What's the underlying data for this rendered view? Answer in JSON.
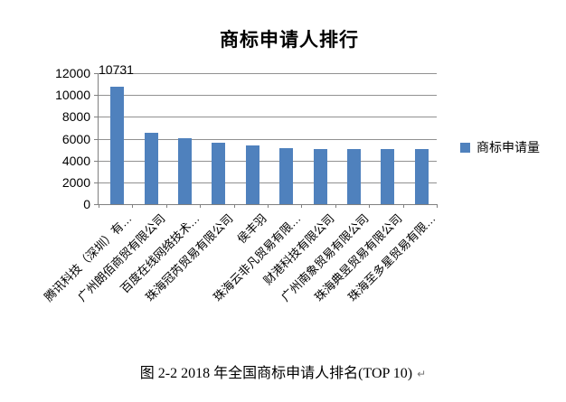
{
  "chart": {
    "title": "商标申请人排行",
    "data_label": "10731",
    "legend": {
      "label": "商标申请量",
      "swatch_color": "#4f81bd"
    },
    "colors": {
      "bar": "#4f81bd",
      "gridline": "#919191",
      "axis": "#808080"
    }
  },
  "caption": {
    "text": "图 2-2 2018 年全国商标申请人排名(TOP 10)",
    "return_mark": "↵"
  },
  "chart_data": {
    "type": "bar",
    "title": "商标申请人排行",
    "legend": [
      "商标申请量"
    ],
    "legend_position": "right",
    "categories": [
      "腾讯科技（深圳）有…",
      "广州朗佰商贸有限公司",
      "百度在线网络技术…",
      "珠海冠芮贸易有限公司",
      "侯丰羽",
      "珠海云非凡贸易有限…",
      "财港科技有限公司",
      "广州南象贸易有限公司",
      "珠海典昱贸易有限公司",
      "珠海至多星贸易有限…"
    ],
    "series": [
      {
        "name": "商标申请量",
        "values": [
          10731,
          6500,
          6050,
          5650,
          5380,
          5100,
          5080,
          5050,
          5050,
          5020
        ]
      }
    ],
    "data_labels": [
      {
        "index": 0,
        "text": "10731"
      }
    ],
    "yticks": [
      0,
      2000,
      4000,
      6000,
      8000,
      10000,
      12000
    ],
    "ylim": [
      0,
      12000
    ],
    "xlabel": "",
    "ylabel": "",
    "grid": true,
    "x_label_rotation_deg": 45
  }
}
